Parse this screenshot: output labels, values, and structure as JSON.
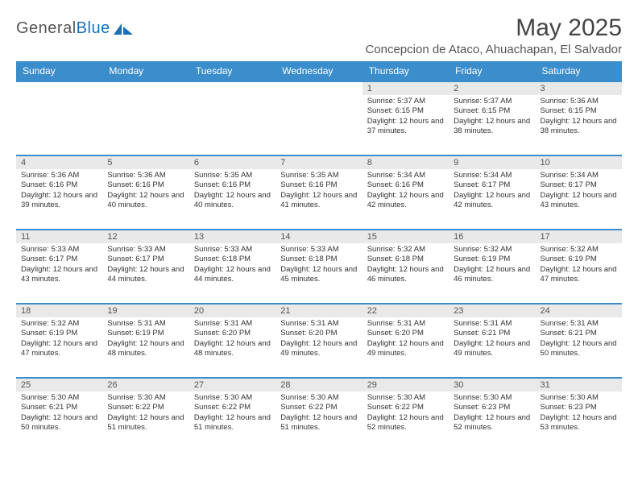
{
  "brand": {
    "general": "General",
    "blue": "Blue"
  },
  "title": "May 2025",
  "location": "Concepcion de Ataco, Ahuachapan, El Salvador",
  "colors": {
    "header_bg": "#3c8dcc",
    "header_text": "#ffffff",
    "row_divider": "#3c8dcc",
    "daynum_bg": "#e9e9e9",
    "text": "#333333",
    "logo_blue": "#1a6fb5",
    "logo_gray": "#555555"
  },
  "weekdays": [
    "Sunday",
    "Monday",
    "Tuesday",
    "Wednesday",
    "Thursday",
    "Friday",
    "Saturday"
  ],
  "labels": {
    "sunrise": "Sunrise:",
    "sunset": "Sunset:",
    "daylight": "Daylight:"
  },
  "weeks": [
    [
      {
        "empty": true
      },
      {
        "empty": true
      },
      {
        "empty": true
      },
      {
        "empty": true
      },
      {
        "day": "1",
        "sunrise": "5:37 AM",
        "sunset": "6:15 PM",
        "daylight": "12 hours and 37 minutes."
      },
      {
        "day": "2",
        "sunrise": "5:37 AM",
        "sunset": "6:15 PM",
        "daylight": "12 hours and 38 minutes."
      },
      {
        "day": "3",
        "sunrise": "5:36 AM",
        "sunset": "6:15 PM",
        "daylight": "12 hours and 38 minutes."
      }
    ],
    [
      {
        "day": "4",
        "sunrise": "5:36 AM",
        "sunset": "6:16 PM",
        "daylight": "12 hours and 39 minutes."
      },
      {
        "day": "5",
        "sunrise": "5:36 AM",
        "sunset": "6:16 PM",
        "daylight": "12 hours and 40 minutes."
      },
      {
        "day": "6",
        "sunrise": "5:35 AM",
        "sunset": "6:16 PM",
        "daylight": "12 hours and 40 minutes."
      },
      {
        "day": "7",
        "sunrise": "5:35 AM",
        "sunset": "6:16 PM",
        "daylight": "12 hours and 41 minutes."
      },
      {
        "day": "8",
        "sunrise": "5:34 AM",
        "sunset": "6:16 PM",
        "daylight": "12 hours and 42 minutes."
      },
      {
        "day": "9",
        "sunrise": "5:34 AM",
        "sunset": "6:17 PM",
        "daylight": "12 hours and 42 minutes."
      },
      {
        "day": "10",
        "sunrise": "5:34 AM",
        "sunset": "6:17 PM",
        "daylight": "12 hours and 43 minutes."
      }
    ],
    [
      {
        "day": "11",
        "sunrise": "5:33 AM",
        "sunset": "6:17 PM",
        "daylight": "12 hours and 43 minutes."
      },
      {
        "day": "12",
        "sunrise": "5:33 AM",
        "sunset": "6:17 PM",
        "daylight": "12 hours and 44 minutes."
      },
      {
        "day": "13",
        "sunrise": "5:33 AM",
        "sunset": "6:18 PM",
        "daylight": "12 hours and 44 minutes."
      },
      {
        "day": "14",
        "sunrise": "5:33 AM",
        "sunset": "6:18 PM",
        "daylight": "12 hours and 45 minutes."
      },
      {
        "day": "15",
        "sunrise": "5:32 AM",
        "sunset": "6:18 PM",
        "daylight": "12 hours and 46 minutes."
      },
      {
        "day": "16",
        "sunrise": "5:32 AM",
        "sunset": "6:19 PM",
        "daylight": "12 hours and 46 minutes."
      },
      {
        "day": "17",
        "sunrise": "5:32 AM",
        "sunset": "6:19 PM",
        "daylight": "12 hours and 47 minutes."
      }
    ],
    [
      {
        "day": "18",
        "sunrise": "5:32 AM",
        "sunset": "6:19 PM",
        "daylight": "12 hours and 47 minutes."
      },
      {
        "day": "19",
        "sunrise": "5:31 AM",
        "sunset": "6:19 PM",
        "daylight": "12 hours and 48 minutes."
      },
      {
        "day": "20",
        "sunrise": "5:31 AM",
        "sunset": "6:20 PM",
        "daylight": "12 hours and 48 minutes."
      },
      {
        "day": "21",
        "sunrise": "5:31 AM",
        "sunset": "6:20 PM",
        "daylight": "12 hours and 49 minutes."
      },
      {
        "day": "22",
        "sunrise": "5:31 AM",
        "sunset": "6:20 PM",
        "daylight": "12 hours and 49 minutes."
      },
      {
        "day": "23",
        "sunrise": "5:31 AM",
        "sunset": "6:21 PM",
        "daylight": "12 hours and 49 minutes."
      },
      {
        "day": "24",
        "sunrise": "5:31 AM",
        "sunset": "6:21 PM",
        "daylight": "12 hours and 50 minutes."
      }
    ],
    [
      {
        "day": "25",
        "sunrise": "5:30 AM",
        "sunset": "6:21 PM",
        "daylight": "12 hours and 50 minutes."
      },
      {
        "day": "26",
        "sunrise": "5:30 AM",
        "sunset": "6:22 PM",
        "daylight": "12 hours and 51 minutes."
      },
      {
        "day": "27",
        "sunrise": "5:30 AM",
        "sunset": "6:22 PM",
        "daylight": "12 hours and 51 minutes."
      },
      {
        "day": "28",
        "sunrise": "5:30 AM",
        "sunset": "6:22 PM",
        "daylight": "12 hours and 51 minutes."
      },
      {
        "day": "29",
        "sunrise": "5:30 AM",
        "sunset": "6:22 PM",
        "daylight": "12 hours and 52 minutes."
      },
      {
        "day": "30",
        "sunrise": "5:30 AM",
        "sunset": "6:23 PM",
        "daylight": "12 hours and 52 minutes."
      },
      {
        "day": "31",
        "sunrise": "5:30 AM",
        "sunset": "6:23 PM",
        "daylight": "12 hours and 53 minutes."
      }
    ]
  ]
}
